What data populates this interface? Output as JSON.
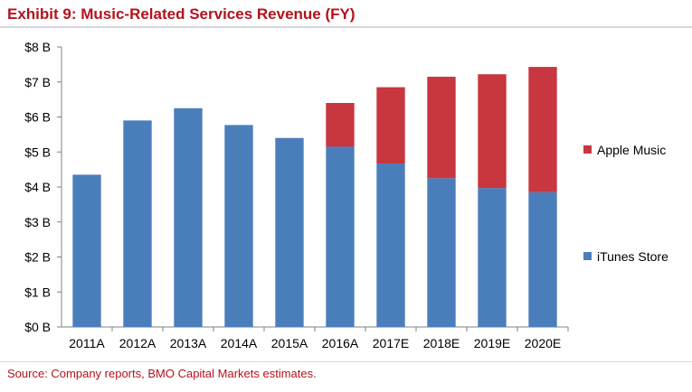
{
  "title": "Exhibit 9:  Music-Related Services Revenue (FY)",
  "source": "Source: Company reports, BMO Capital Markets estimates.",
  "chart_data": {
    "type": "bar",
    "stacked": true,
    "title": "Exhibit 9:  Music-Related Services Revenue (FY)",
    "xlabel": "",
    "ylabel": "",
    "categories": [
      "2011A",
      "2012A",
      "2013A",
      "2014A",
      "2015A",
      "2016A",
      "2017E",
      "2018E",
      "2019E",
      "2020E"
    ],
    "series": [
      {
        "name": "iTunes Store",
        "color": "#4a7ebb",
        "values": [
          4.35,
          5.9,
          6.25,
          5.77,
          5.4,
          5.15,
          4.67,
          4.25,
          3.97,
          3.85
        ]
      },
      {
        "name": "Apple Music",
        "color": "#c8363f",
        "values": [
          0,
          0,
          0,
          0,
          0,
          1.25,
          2.18,
          2.9,
          3.25,
          3.58
        ]
      }
    ],
    "ylim": [
      0,
      8
    ],
    "yticks": [
      0,
      1,
      2,
      3,
      4,
      5,
      6,
      7,
      8
    ],
    "ytick_labels": [
      "$0 B",
      "$1 B",
      "$2 B",
      "$3 B",
      "$4 B",
      "$5 B",
      "$6 B",
      "$7 B",
      "$8 B"
    ],
    "grid": false,
    "legend": "right",
    "legend_entries": [
      "Apple Music",
      "iTunes Store"
    ]
  }
}
